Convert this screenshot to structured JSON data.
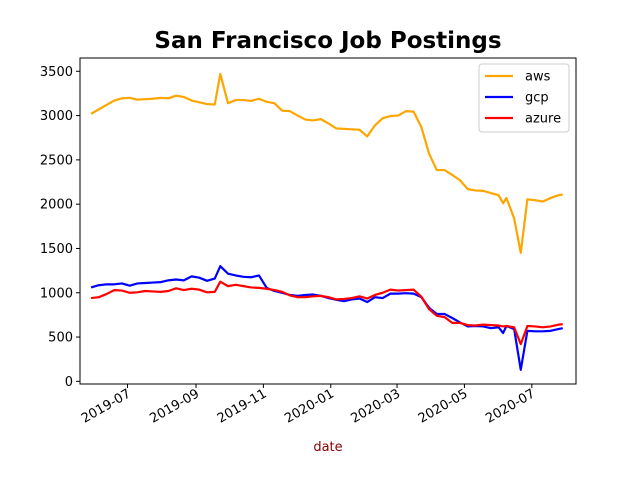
{
  "chart_data": {
    "type": "line",
    "title": "San Francisco Job Postings",
    "xlabel": "date",
    "xlabel_color": "#8b0000",
    "ylabel": "",
    "x_axis_type": "date",
    "xlim": [
      "2019-05-19",
      "2020-08-10"
    ],
    "ylim": [
      -30,
      3650
    ],
    "yticks": [
      0,
      500,
      1000,
      1500,
      2000,
      2500,
      3000,
      3500
    ],
    "xticks": [
      {
        "date": "2019-07-01",
        "label": "2019-07"
      },
      {
        "date": "2019-09-01",
        "label": "2019-09"
      },
      {
        "date": "2019-11-01",
        "label": "2019-11"
      },
      {
        "date": "2020-01-01",
        "label": "2020-01"
      },
      {
        "date": "2020-03-01",
        "label": "2020-03"
      },
      {
        "date": "2020-05-01",
        "label": "2020-05"
      },
      {
        "date": "2020-07-01",
        "label": "2020-07"
      }
    ],
    "grid": false,
    "legend_position": "top-right",
    "series": [
      {
        "name": "aws",
        "color": "#ffa500",
        "points": [
          [
            "2019-05-29",
            3020
          ],
          [
            "2019-06-05",
            3070
          ],
          [
            "2019-06-12",
            3120
          ],
          [
            "2019-06-19",
            3170
          ],
          [
            "2019-06-26",
            3195
          ],
          [
            "2019-07-03",
            3200
          ],
          [
            "2019-07-10",
            3180
          ],
          [
            "2019-07-17",
            3185
          ],
          [
            "2019-07-24",
            3190
          ],
          [
            "2019-07-31",
            3200
          ],
          [
            "2019-08-07",
            3195
          ],
          [
            "2019-08-14",
            3225
          ],
          [
            "2019-08-21",
            3210
          ],
          [
            "2019-08-28",
            3170
          ],
          [
            "2019-09-04",
            3150
          ],
          [
            "2019-09-11",
            3130
          ],
          [
            "2019-09-18",
            3125
          ],
          [
            "2019-09-23",
            3470
          ],
          [
            "2019-09-30",
            3140
          ],
          [
            "2019-10-07",
            3175
          ],
          [
            "2019-10-14",
            3175
          ],
          [
            "2019-10-21",
            3165
          ],
          [
            "2019-10-28",
            3190
          ],
          [
            "2019-11-04",
            3155
          ],
          [
            "2019-11-11",
            3140
          ],
          [
            "2019-11-18",
            3055
          ],
          [
            "2019-11-25",
            3050
          ],
          [
            "2019-12-02",
            3000
          ],
          [
            "2019-12-09",
            2955
          ],
          [
            "2019-12-16",
            2945
          ],
          [
            "2019-12-23",
            2960
          ],
          [
            "2019-12-30",
            2910
          ],
          [
            "2020-01-06",
            2855
          ],
          [
            "2020-01-13",
            2850
          ],
          [
            "2020-01-20",
            2845
          ],
          [
            "2020-01-27",
            2840
          ],
          [
            "2020-02-03",
            2765
          ],
          [
            "2020-02-10",
            2890
          ],
          [
            "2020-02-17",
            2970
          ],
          [
            "2020-02-24",
            2995
          ],
          [
            "2020-03-02",
            3000
          ],
          [
            "2020-03-09",
            3050
          ],
          [
            "2020-03-16",
            3045
          ],
          [
            "2020-03-23",
            2870
          ],
          [
            "2020-03-30",
            2570
          ],
          [
            "2020-04-06",
            2385
          ],
          [
            "2020-04-13",
            2385
          ],
          [
            "2020-04-20",
            2330
          ],
          [
            "2020-04-27",
            2270
          ],
          [
            "2020-05-04",
            2170
          ],
          [
            "2020-05-11",
            2155
          ],
          [
            "2020-05-18",
            2150
          ],
          [
            "2020-05-25",
            2125
          ],
          [
            "2020-06-01",
            2100
          ],
          [
            "2020-06-05",
            2010
          ],
          [
            "2020-06-08",
            2070
          ],
          [
            "2020-06-15",
            1840
          ],
          [
            "2020-06-21",
            1450
          ],
          [
            "2020-06-27",
            2055
          ],
          [
            "2020-07-04",
            2045
          ],
          [
            "2020-07-11",
            2030
          ],
          [
            "2020-07-18",
            2070
          ],
          [
            "2020-07-25",
            2100
          ],
          [
            "2020-07-29",
            2110
          ]
        ]
      },
      {
        "name": "gcp",
        "color": "#0000ff",
        "points": [
          [
            "2019-05-29",
            1060
          ],
          [
            "2019-06-05",
            1085
          ],
          [
            "2019-06-12",
            1095
          ],
          [
            "2019-06-19",
            1095
          ],
          [
            "2019-06-26",
            1105
          ],
          [
            "2019-07-03",
            1080
          ],
          [
            "2019-07-10",
            1105
          ],
          [
            "2019-07-17",
            1110
          ],
          [
            "2019-07-24",
            1115
          ],
          [
            "2019-07-31",
            1120
          ],
          [
            "2019-08-07",
            1140
          ],
          [
            "2019-08-14",
            1150
          ],
          [
            "2019-08-21",
            1140
          ],
          [
            "2019-08-28",
            1185
          ],
          [
            "2019-09-04",
            1170
          ],
          [
            "2019-09-11",
            1135
          ],
          [
            "2019-09-18",
            1160
          ],
          [
            "2019-09-23",
            1300
          ],
          [
            "2019-09-30",
            1215
          ],
          [
            "2019-10-07",
            1195
          ],
          [
            "2019-10-14",
            1180
          ],
          [
            "2019-10-21",
            1175
          ],
          [
            "2019-10-28",
            1195
          ],
          [
            "2019-11-04",
            1055
          ],
          [
            "2019-11-11",
            1020
          ],
          [
            "2019-11-18",
            1000
          ],
          [
            "2019-11-25",
            975
          ],
          [
            "2019-12-02",
            965
          ],
          [
            "2019-12-09",
            975
          ],
          [
            "2019-12-16",
            980
          ],
          [
            "2019-12-23",
            965
          ],
          [
            "2019-12-30",
            940
          ],
          [
            "2020-01-06",
            920
          ],
          [
            "2020-01-13",
            905
          ],
          [
            "2020-01-20",
            925
          ],
          [
            "2020-01-27",
            935
          ],
          [
            "2020-02-03",
            895
          ],
          [
            "2020-02-10",
            950
          ],
          [
            "2020-02-17",
            940
          ],
          [
            "2020-02-24",
            990
          ],
          [
            "2020-03-02",
            990
          ],
          [
            "2020-03-09",
            995
          ],
          [
            "2020-03-16",
            990
          ],
          [
            "2020-03-23",
            950
          ],
          [
            "2020-03-30",
            830
          ],
          [
            "2020-04-06",
            760
          ],
          [
            "2020-04-13",
            760
          ],
          [
            "2020-04-20",
            715
          ],
          [
            "2020-04-27",
            665
          ],
          [
            "2020-05-04",
            620
          ],
          [
            "2020-05-11",
            625
          ],
          [
            "2020-05-18",
            620
          ],
          [
            "2020-05-25",
            600
          ],
          [
            "2020-06-01",
            610
          ],
          [
            "2020-06-05",
            545
          ],
          [
            "2020-06-08",
            625
          ],
          [
            "2020-06-15",
            590
          ],
          [
            "2020-06-21",
            130
          ],
          [
            "2020-06-27",
            570
          ],
          [
            "2020-07-04",
            565
          ],
          [
            "2020-07-11",
            565
          ],
          [
            "2020-07-18",
            570
          ],
          [
            "2020-07-25",
            590
          ],
          [
            "2020-07-29",
            600
          ]
        ]
      },
      {
        "name": "azure",
        "color": "#ff0000",
        "points": [
          [
            "2019-05-29",
            940
          ],
          [
            "2019-06-05",
            950
          ],
          [
            "2019-06-12",
            985
          ],
          [
            "2019-06-19",
            1030
          ],
          [
            "2019-06-26",
            1025
          ],
          [
            "2019-07-03",
            1000
          ],
          [
            "2019-07-10",
            1005
          ],
          [
            "2019-07-17",
            1020
          ],
          [
            "2019-07-24",
            1015
          ],
          [
            "2019-07-31",
            1010
          ],
          [
            "2019-08-07",
            1020
          ],
          [
            "2019-08-14",
            1050
          ],
          [
            "2019-08-21",
            1030
          ],
          [
            "2019-08-28",
            1045
          ],
          [
            "2019-09-04",
            1035
          ],
          [
            "2019-09-11",
            1005
          ],
          [
            "2019-09-18",
            1010
          ],
          [
            "2019-09-23",
            1125
          ],
          [
            "2019-09-30",
            1075
          ],
          [
            "2019-10-07",
            1090
          ],
          [
            "2019-10-14",
            1075
          ],
          [
            "2019-10-21",
            1060
          ],
          [
            "2019-10-28",
            1055
          ],
          [
            "2019-11-04",
            1045
          ],
          [
            "2019-11-11",
            1030
          ],
          [
            "2019-11-18",
            1010
          ],
          [
            "2019-11-25",
            970
          ],
          [
            "2019-12-02",
            950
          ],
          [
            "2019-12-09",
            950
          ],
          [
            "2019-12-16",
            960
          ],
          [
            "2019-12-23",
            965
          ],
          [
            "2019-12-30",
            950
          ],
          [
            "2020-01-06",
            925
          ],
          [
            "2020-01-13",
            930
          ],
          [
            "2020-01-20",
            940
          ],
          [
            "2020-01-27",
            960
          ],
          [
            "2020-02-03",
            935
          ],
          [
            "2020-02-10",
            975
          ],
          [
            "2020-02-17",
            1000
          ],
          [
            "2020-02-24",
            1035
          ],
          [
            "2020-03-02",
            1025
          ],
          [
            "2020-03-09",
            1030
          ],
          [
            "2020-03-16",
            1035
          ],
          [
            "2020-03-23",
            955
          ],
          [
            "2020-03-30",
            815
          ],
          [
            "2020-04-06",
            740
          ],
          [
            "2020-04-13",
            725
          ],
          [
            "2020-04-20",
            660
          ],
          [
            "2020-04-27",
            660
          ],
          [
            "2020-05-04",
            635
          ],
          [
            "2020-05-11",
            630
          ],
          [
            "2020-05-18",
            640
          ],
          [
            "2020-05-25",
            635
          ],
          [
            "2020-06-01",
            630
          ],
          [
            "2020-06-05",
            620
          ],
          [
            "2020-06-08",
            625
          ],
          [
            "2020-06-15",
            610
          ],
          [
            "2020-06-21",
            420
          ],
          [
            "2020-06-27",
            625
          ],
          [
            "2020-07-04",
            620
          ],
          [
            "2020-07-11",
            610
          ],
          [
            "2020-07-18",
            620
          ],
          [
            "2020-07-25",
            640
          ],
          [
            "2020-07-29",
            645
          ]
        ]
      }
    ]
  }
}
